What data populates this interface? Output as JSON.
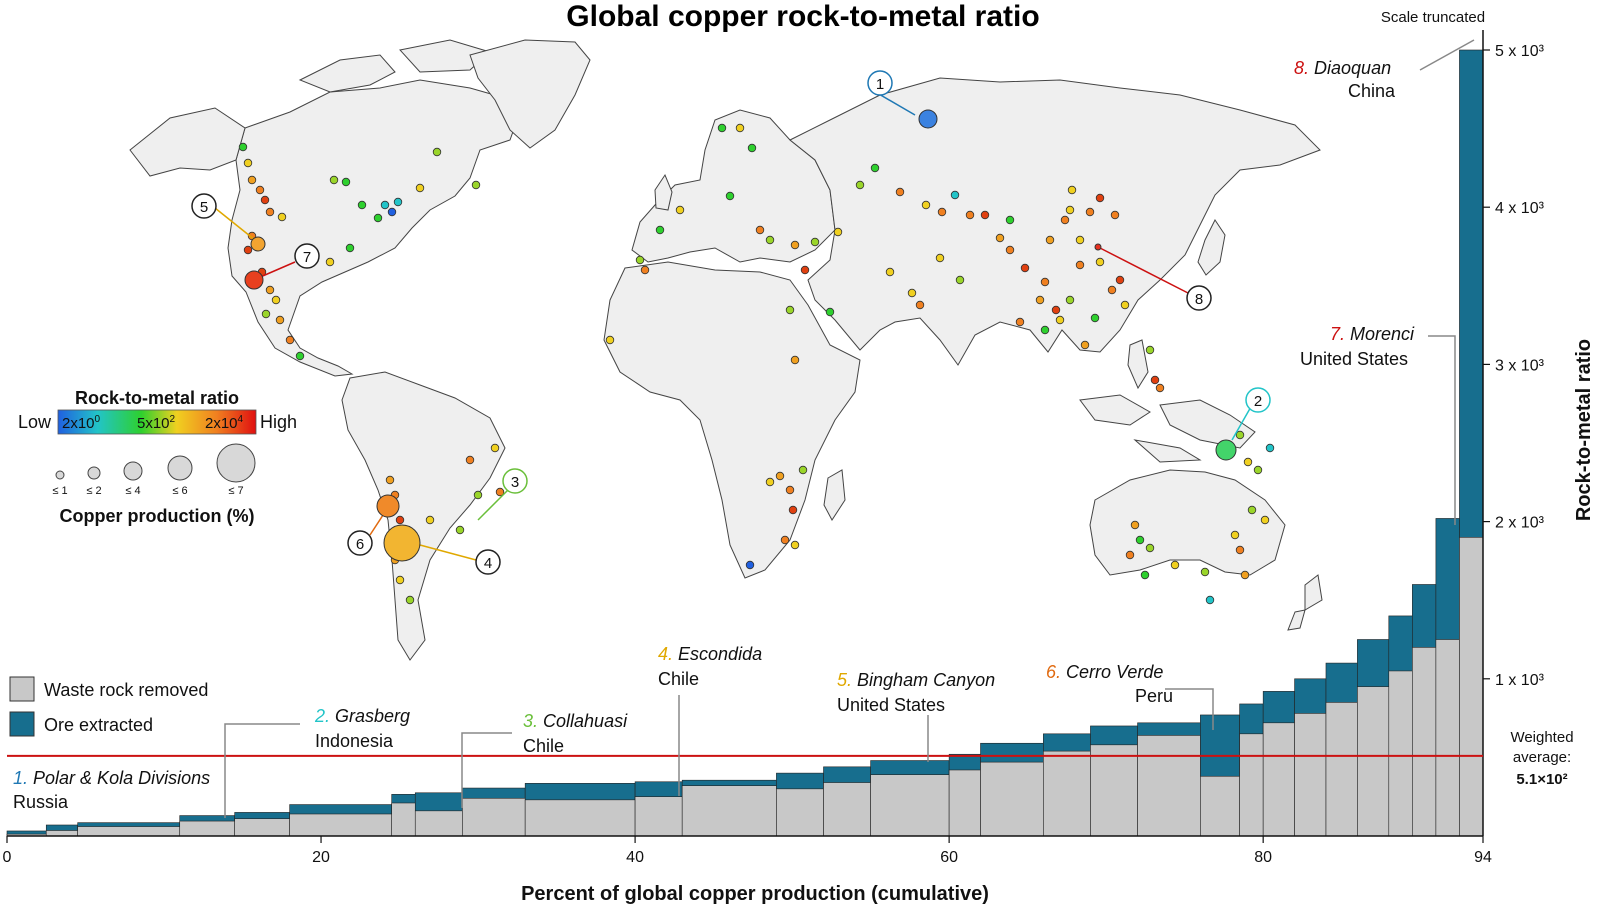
{
  "chart_data": {
    "type": "bar",
    "title": "Global copper rock-to-metal ratio",
    "xlabel": "Percent of global copper production (cumulative)",
    "ylabel": "Rock-to-metal ratio",
    "xlim": [
      0,
      94
    ],
    "ylim": [
      0,
      5000
    ],
    "x_ticks": [
      "0",
      "20",
      "40",
      "60",
      "80",
      "94"
    ],
    "y_ticks": [
      "1 x 10³",
      "2 x 10³",
      "3 x 10³",
      "4 x 10³",
      "5 x 10³"
    ],
    "y_tick_values": [
      1000,
      2000,
      3000,
      4000,
      5000
    ],
    "scale_note": "Scale truncated",
    "legend": [
      {
        "name": "Waste rock removed",
        "color": "#c8c8c8"
      },
      {
        "name": "Ore extracted",
        "color": "#176e8e"
      }
    ],
    "weighted_average": {
      "value": 510,
      "label_line1": "Weighted",
      "label_line2": "average:",
      "value_label": "5.1×10²",
      "color": "#cc1111"
    },
    "series": [
      {
        "name": "Waste rock removed",
        "segments": [
          [
            0,
            2.5,
            12
          ],
          [
            2.5,
            4.5,
            35
          ],
          [
            4.5,
            11,
            60
          ],
          [
            11,
            14.5,
            95
          ],
          [
            14.5,
            18,
            110
          ],
          [
            18,
            24.5,
            140
          ],
          [
            24.5,
            26,
            210
          ],
          [
            26,
            29,
            160
          ],
          [
            29,
            33,
            240
          ],
          [
            33,
            40,
            230
          ],
          [
            40,
            43,
            250
          ],
          [
            43,
            49,
            320
          ],
          [
            49,
            52,
            300
          ],
          [
            52,
            55,
            340
          ],
          [
            55,
            60,
            390
          ],
          [
            60,
            62,
            420
          ],
          [
            62,
            66,
            470
          ],
          [
            66,
            69,
            540
          ],
          [
            69,
            72,
            580
          ],
          [
            72,
            76,
            640
          ],
          [
            76,
            78.5,
            380
          ],
          [
            78.5,
            80,
            650
          ],
          [
            80,
            82,
            720
          ],
          [
            82,
            84,
            780
          ],
          [
            84,
            86,
            850
          ],
          [
            86,
            88,
            950
          ],
          [
            88,
            89.5,
            1050
          ],
          [
            89.5,
            91,
            1200
          ],
          [
            91,
            92.5,
            1250
          ],
          [
            92.5,
            94,
            1900
          ]
        ]
      },
      {
        "name": "Ore extracted",
        "segments": [
          [
            0,
            2.5,
            32
          ],
          [
            2.5,
            4.5,
            70
          ],
          [
            4.5,
            11,
            85
          ],
          [
            11,
            14.5,
            130
          ],
          [
            14.5,
            18,
            150
          ],
          [
            18,
            24.5,
            200
          ],
          [
            24.5,
            26,
            265
          ],
          [
            26,
            29,
            275
          ],
          [
            29,
            33,
            305
          ],
          [
            33,
            40,
            335
          ],
          [
            40,
            43,
            345
          ],
          [
            43,
            49,
            355
          ],
          [
            49,
            52,
            400
          ],
          [
            52,
            55,
            440
          ],
          [
            55,
            60,
            480
          ],
          [
            60,
            62,
            520
          ],
          [
            62,
            66,
            590
          ],
          [
            66,
            69,
            650
          ],
          [
            69,
            72,
            700
          ],
          [
            72,
            76,
            720
          ],
          [
            76,
            78.5,
            770
          ],
          [
            78.5,
            80,
            840
          ],
          [
            80,
            82,
            920
          ],
          [
            82,
            84,
            1000
          ],
          [
            84,
            86,
            1100
          ],
          [
            86,
            88,
            1250
          ],
          [
            88,
            89.5,
            1400
          ],
          [
            89.5,
            91,
            1600
          ],
          [
            91,
            92.5,
            2020
          ],
          [
            92.5,
            94,
            5300
          ]
        ]
      }
    ],
    "annotations": [
      {
        "num": "1.",
        "name": "Polar & Kola Divisions",
        "country": "Russia",
        "color": "#1f78b4"
      },
      {
        "num": "2.",
        "name": "Grasberg",
        "country": "Indonesia",
        "color": "#22c4c8"
      },
      {
        "num": "3.",
        "name": "Collahuasi",
        "country": "Chile",
        "color": "#6abf3a"
      },
      {
        "num": "4.",
        "name": "Escondida",
        "country": "Chile",
        "color": "#e0a800"
      },
      {
        "num": "5.",
        "name": "Bingham Canyon",
        "country": "United States",
        "color": "#e0a800"
      },
      {
        "num": "6.",
        "name": "Cerro Verde",
        "country": "Peru",
        "color": "#e06a10"
      },
      {
        "num": "7.",
        "name": "Morenci",
        "country": "United States",
        "color": "#cc1111"
      },
      {
        "num": "8.",
        "name": "Diaoquan",
        "country": "China",
        "color": "#cc1111"
      }
    ]
  },
  "map": {
    "markers": [
      {
        "n": "1",
        "color": "#3b82e0",
        "stroke": "#1f78b4"
      },
      {
        "n": "2",
        "color": "#43d46a",
        "stroke": "#22c4c8"
      },
      {
        "n": "3",
        "color": "#8ccf3a",
        "stroke": "#6abf3a"
      },
      {
        "n": "4",
        "color": "#f2b531",
        "stroke": "#e0a800"
      },
      {
        "n": "5",
        "color": "#f2a431",
        "stroke": "#e0a800"
      },
      {
        "n": "6",
        "color": "#f08a2a",
        "stroke": "#e06a10"
      },
      {
        "n": "7",
        "color": "#e8401f",
        "stroke": "#cc1111"
      },
      {
        "n": "8",
        "color": "#e8301f",
        "stroke": "#cc1111"
      }
    ],
    "colorbar": {
      "title": "Rock-to-metal ratio",
      "low": "Low",
      "high": "High",
      "v1_mant": "2x10",
      "v1_exp": "0",
      "v2_mant": "5x10",
      "v2_exp": "2",
      "v3_mant": "2x10",
      "v3_exp": "4",
      "colors": [
        "#2060e0",
        "#22c4c8",
        "#2ed02e",
        "#f0d020",
        "#f08020",
        "#e01010"
      ]
    },
    "size_legend": {
      "title": "Copper production (%)",
      "labels": [
        "≤ 1",
        "≤ 2",
        "≤ 4",
        "≤ 6",
        "≤ 7"
      ]
    }
  }
}
